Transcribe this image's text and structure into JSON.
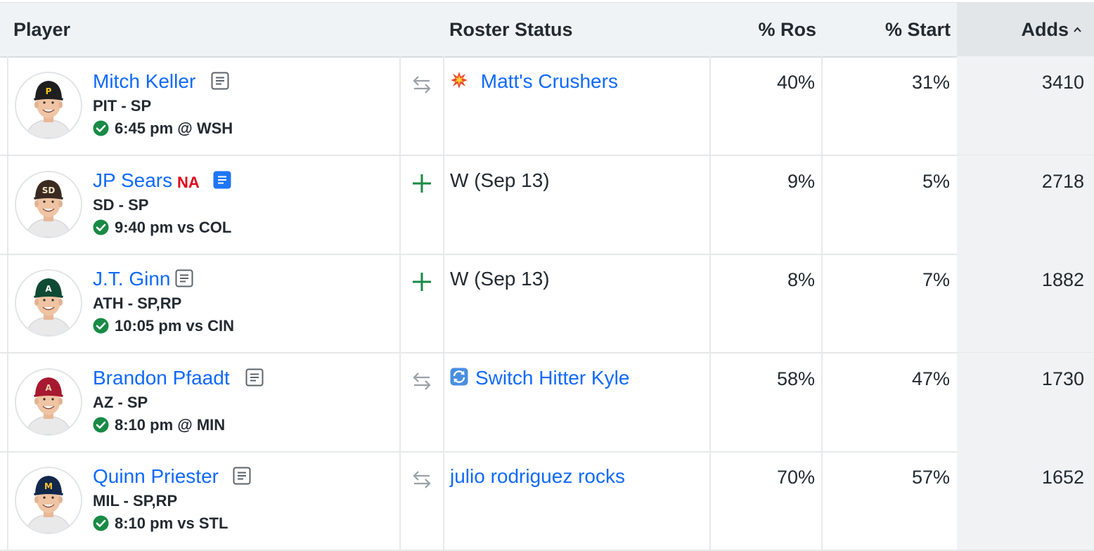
{
  "header": {
    "player": "Player",
    "roster_status": "Roster Status",
    "pct_ros": "% Ros",
    "pct_start": "% Start",
    "adds": "Adds",
    "sort_icon": "chevron-up-icon"
  },
  "rows": [
    {
      "name": "Mitch Keller",
      "na": "",
      "note_icon": "note-icon",
      "team_pos": "PIT - SP",
      "game": "6:45 pm @ WSH",
      "action": "trade-icon",
      "status_emoji": "explosion-icon",
      "status": "Matt's Crushers",
      "status_is_link": true,
      "ros": "40%",
      "start": "31%",
      "adds": "3410",
      "cap_color": "#1f1f1f",
      "cap_logo": "P",
      "cap_logo_color": "#f9c51b"
    },
    {
      "name": "JP Sears",
      "na": "NA",
      "note_icon": "note-icon-active",
      "team_pos": "SD - SP",
      "game": "9:40 pm vs COL",
      "action": "add-icon",
      "status_emoji": "",
      "status": "W (Sep 13)",
      "status_is_link": false,
      "ros": "9%",
      "start": "5%",
      "adds": "2718",
      "cap_color": "#3a2a20",
      "cap_logo": "SD",
      "cap_logo_color": "#f2e4c4"
    },
    {
      "name": "J.T. Ginn",
      "na": "",
      "note_icon": "note-icon",
      "team_pos": "ATH - SP,RP",
      "game": "10:05 pm vs CIN",
      "action": "add-icon",
      "status_emoji": "",
      "status": "W (Sep 13)",
      "status_is_link": false,
      "ros": "8%",
      "start": "7%",
      "adds": "1882",
      "cap_color": "#0f4a35",
      "cap_logo": "A",
      "cap_logo_color": "#ffffff"
    },
    {
      "name": "Brandon Pfaadt",
      "na": "",
      "note_icon": "note-icon",
      "team_pos": "AZ - SP",
      "game": "8:10 pm @ MIN",
      "action": "trade-icon",
      "status_emoji": "refresh-icon",
      "status": "Switch Hitter Kyle",
      "status_is_link": true,
      "ros": "58%",
      "start": "47%",
      "adds": "1730",
      "cap_color": "#a71930",
      "cap_logo": "A",
      "cap_logo_color": "#e3d4ad"
    },
    {
      "name": "Quinn Priester",
      "na": "",
      "note_icon": "note-icon",
      "team_pos": "MIL - SP,RP",
      "game": "8:10 pm vs STL",
      "action": "trade-icon",
      "status_emoji": "",
      "status": "julio rodriguez rocks",
      "status_is_link": true,
      "ros": "70%",
      "start": "57%",
      "adds": "1652",
      "cap_color": "#12284b",
      "cap_logo": "M",
      "cap_logo_color": "#ffc52f"
    }
  ],
  "colors": {
    "link": "#0f69ff",
    "check": "#188a45",
    "add": "#188a45",
    "na": "#e0001b"
  }
}
